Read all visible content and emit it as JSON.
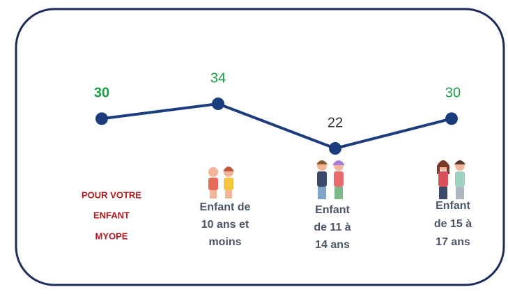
{
  "chart_data": {
    "type": "line",
    "categories": [
      [
        "POUR VOTRE",
        "ENFANT",
        "MYOPE"
      ],
      [
        "Enfant de",
        "10 ans et",
        "moins"
      ],
      [
        "Enfant",
        "de 11 à",
        "14 ans"
      ],
      [
        "Enfant",
        "de 15 à",
        "17 ans"
      ]
    ],
    "values": [
      30,
      34,
      22,
      30
    ],
    "color": "#1b3d7e",
    "label_colors": [
      "#1a9f48",
      "#1a9f48",
      "#333333",
      "#1a9f48"
    ],
    "category_colors": [
      "#b3191c",
      "#4a5566",
      "#4a5566",
      "#4a5566"
    ]
  }
}
